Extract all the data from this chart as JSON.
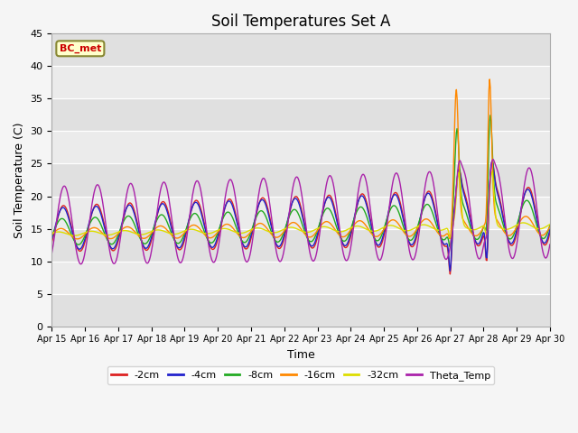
{
  "title": "Soil Temperatures Set A",
  "xlabel": "Time",
  "ylabel": "Soil Temperature (C)",
  "ylim": [
    0,
    45
  ],
  "yticks": [
    0,
    5,
    10,
    15,
    20,
    25,
    30,
    35,
    40,
    45
  ],
  "plot_bg_color": "#e8e8e8",
  "fig_bg_color": "#f5f5f5",
  "series_colors": {
    "-2cm": "#dd2222",
    "-4cm": "#2222cc",
    "-8cm": "#22aa22",
    "-16cm": "#ff8800",
    "-32cm": "#dddd00",
    "Theta_Temp": "#aa22aa"
  },
  "legend_labels": [
    "-2cm",
    "-4cm",
    "-8cm",
    "-16cm",
    "-32cm",
    "Theta_Temp"
  ],
  "annotation_text": "BC_met",
  "annotation_color": "#cc0000",
  "annotation_bg": "#ffffcc",
  "annotation_border": "#888833",
  "xtick_labels": [
    "Apr 15",
    "Apr 16",
    "Apr 17",
    "Apr 18",
    "Apr 19",
    "Apr 20",
    "Apr 21",
    "Apr 22",
    "Apr 23",
    "Apr 24",
    "Apr 25",
    "Apr 26",
    "Apr 27",
    "Apr 28",
    "Apr 29",
    "Apr 30"
  ],
  "grid_colors": [
    "#ffffff",
    "#d8d8d8"
  ]
}
